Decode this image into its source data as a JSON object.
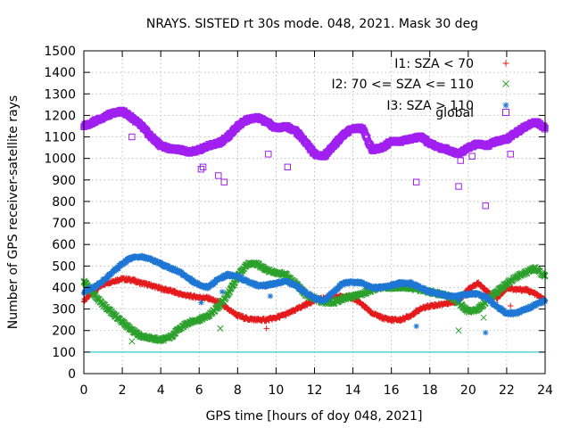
{
  "chart_data": {
    "type": "scatter",
    "title": "NRAYS. SISTED rt 30s mode. 048, 2021. Mask 30 deg",
    "xlabel": "GPS time [hours of doy 048, 2021]",
    "ylabel": "Number of GPS receiver-satellite rays",
    "xlim": [
      0,
      24
    ],
    "ylim": [
      0,
      1500
    ],
    "x_ticks": [
      0,
      2,
      4,
      6,
      8,
      10,
      12,
      14,
      16,
      18,
      20,
      22,
      24
    ],
    "y_ticks": [
      0,
      100,
      200,
      300,
      400,
      500,
      600,
      700,
      800,
      900,
      1000,
      1100,
      1200,
      1300,
      1400,
      1500
    ],
    "grid": true,
    "legend_position": "top-right",
    "reference_line": {
      "y": 100,
      "color": "#00c0c0"
    },
    "series": [
      {
        "name": "I1: SZA < 70",
        "marker": "plus",
        "color": "#e41a1c",
        "x": [
          0,
          0.5,
          1,
          1.5,
          2,
          2.5,
          3,
          3.5,
          4,
          4.5,
          5,
          5.5,
          6,
          6.5,
          7,
          7.5,
          8,
          8.5,
          9,
          9.5,
          10,
          10.5,
          11,
          11.5,
          12,
          12.5,
          13,
          13.5,
          14,
          14.5,
          15,
          15.5,
          16,
          16.5,
          17,
          17.5,
          18,
          18.5,
          19,
          19.5,
          20,
          20.5,
          21,
          21.5,
          22,
          22.5,
          23,
          23.5,
          24
        ],
        "y": [
          340,
          380,
          415,
          430,
          440,
          435,
          420,
          410,
          395,
          385,
          370,
          360,
          355,
          350,
          330,
          300,
          270,
          255,
          250,
          250,
          260,
          275,
          295,
          320,
          340,
          350,
          355,
          360,
          350,
          320,
          280,
          260,
          250,
          250,
          270,
          300,
          315,
          320,
          330,
          340,
          390,
          420,
          380,
          350,
          400,
          390,
          390,
          370,
          340
        ],
        "outliers": [
          [
            9.5,
            210
          ],
          [
            22.2,
            315
          ]
        ]
      },
      {
        "name": "I2: 70 <= SZA <= 110",
        "marker": "cross",
        "color": "#2ca02c",
        "x": [
          0,
          0.5,
          1,
          1.5,
          2,
          2.5,
          3,
          3.5,
          4,
          4.5,
          5,
          5.5,
          6,
          6.5,
          7,
          7.5,
          8,
          8.5,
          9,
          9.5,
          10,
          10.5,
          11,
          11.5,
          12,
          12.5,
          13,
          13.5,
          14,
          14.5,
          15,
          15.5,
          16,
          16.5,
          17,
          17.5,
          18,
          18.5,
          19,
          19.5,
          20,
          20.5,
          21,
          21.5,
          22,
          22.5,
          23,
          23.5,
          24
        ],
        "y": [
          430,
          370,
          320,
          280,
          240,
          200,
          175,
          165,
          155,
          170,
          210,
          240,
          250,
          270,
          310,
          370,
          450,
          510,
          510,
          480,
          470,
          460,
          420,
          370,
          350,
          330,
          330,
          350,
          360,
          370,
          390,
          400,
          400,
          400,
          400,
          390,
          380,
          370,
          360,
          330,
          290,
          300,
          340,
          380,
          420,
          450,
          470,
          490,
          450
        ],
        "outliers": [
          [
            2.5,
            150
          ],
          [
            7.1,
            210
          ],
          [
            19.5,
            200
          ],
          [
            20.8,
            260
          ]
        ]
      },
      {
        "name": "I3: SZA > 110",
        "marker": "star",
        "color": "#1f77d4",
        "x": [
          0,
          0.5,
          1,
          1.5,
          2,
          2.5,
          3,
          3.5,
          4,
          4.5,
          5,
          5.5,
          6,
          6.5,
          7,
          7.5,
          8,
          8.5,
          9,
          9.5,
          10,
          10.5,
          11,
          11.5,
          12,
          12.5,
          13,
          13.5,
          14,
          14.5,
          15,
          15.5,
          16,
          16.5,
          17,
          17.5,
          18,
          18.5,
          19,
          19.5,
          20,
          20.5,
          21,
          21.5,
          22,
          22.5,
          23,
          23.5,
          24
        ],
        "y": [
          380,
          400,
          430,
          470,
          510,
          540,
          545,
          530,
          510,
          490,
          470,
          440,
          410,
          400,
          440,
          460,
          450,
          430,
          410,
          410,
          420,
          430,
          410,
          380,
          350,
          340,
          380,
          420,
          425,
          420,
          400,
          400,
          410,
          420,
          420,
          400,
          380,
          370,
          360,
          360,
          370,
          370,
          350,
          310,
          280,
          280,
          300,
          320,
          340
        ],
        "outliers": [
          [
            6.1,
            330
          ],
          [
            7.2,
            380
          ],
          [
            9.7,
            360
          ],
          [
            17.3,
            220
          ],
          [
            19.5,
            340
          ],
          [
            20.9,
            190
          ]
        ]
      },
      {
        "name": "global",
        "marker": "square",
        "color": "#a020f0",
        "x": [
          0,
          0.5,
          1,
          1.5,
          2,
          2.5,
          3,
          3.5,
          4,
          4.5,
          5,
          5.5,
          6,
          6.5,
          7,
          7.5,
          8,
          8.5,
          9,
          9.5,
          10,
          10.5,
          11,
          11.5,
          12,
          12.5,
          13,
          13.5,
          14,
          14.5,
          15,
          15.5,
          16,
          16.5,
          17,
          17.5,
          18,
          18.5,
          19,
          19.5,
          20,
          20.5,
          21,
          21.5,
          22,
          22.5,
          23,
          23.5,
          24
        ],
        "y": [
          1150,
          1170,
          1190,
          1210,
          1220,
          1190,
          1150,
          1100,
          1060,
          1045,
          1040,
          1030,
          1040,
          1060,
          1070,
          1100,
          1150,
          1180,
          1190,
          1170,
          1140,
          1150,
          1130,
          1080,
          1020,
          1010,
          1060,
          1110,
          1140,
          1140,
          1040,
          1050,
          1080,
          1080,
          1090,
          1100,
          1070,
          1050,
          1040,
          1020,
          1050,
          1070,
          1060,
          1080,
          1090,
          1120,
          1150,
          1170,
          1140
        ],
        "outliers": [
          [
            2.5,
            1100
          ],
          [
            6.1,
            950
          ],
          [
            6.2,
            960
          ],
          [
            7.0,
            920
          ],
          [
            7.3,
            890
          ],
          [
            9.6,
            1020
          ],
          [
            10.6,
            960
          ],
          [
            17.3,
            890
          ],
          [
            19.5,
            870
          ],
          [
            19.6,
            990
          ],
          [
            20.2,
            1010
          ],
          [
            20.9,
            780
          ],
          [
            22.2,
            1020
          ]
        ]
      }
    ]
  }
}
